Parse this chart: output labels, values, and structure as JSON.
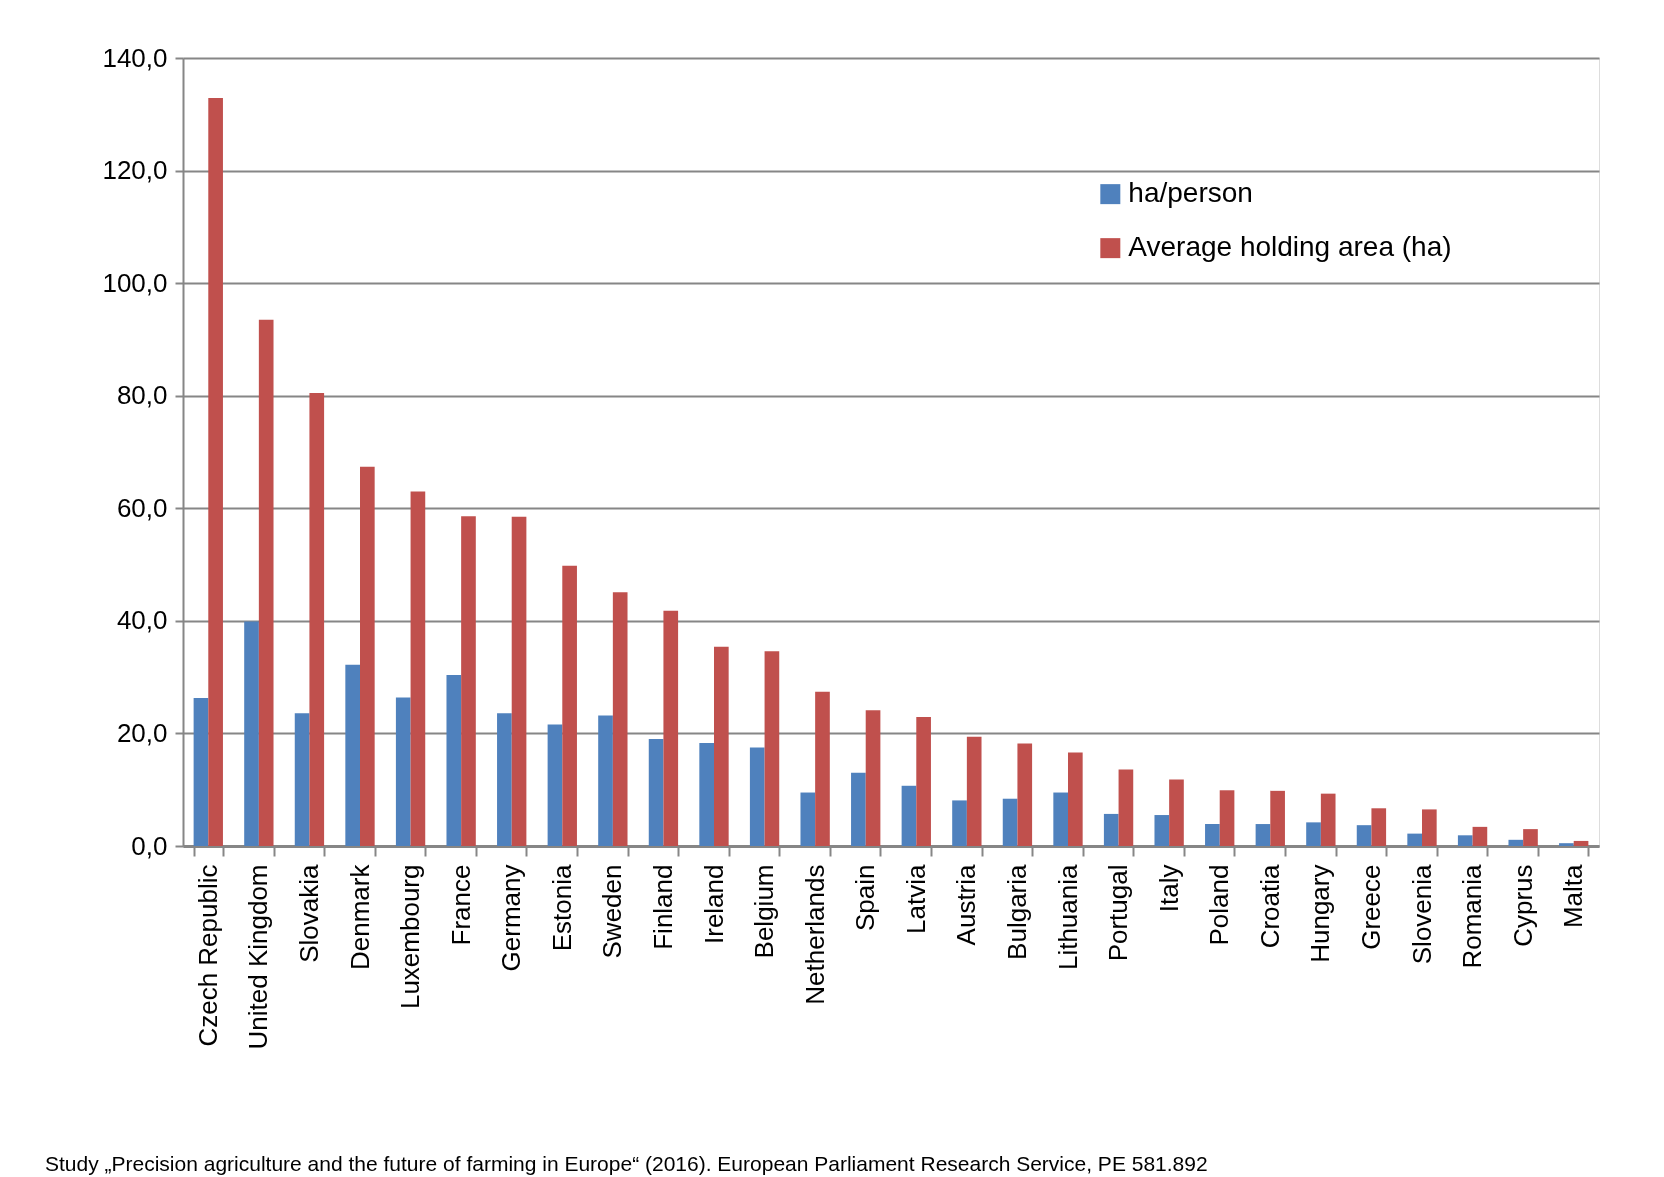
{
  "chart_data": {
    "type": "bar",
    "categories": [
      "Czech Republic",
      "United Kingdom",
      "Slovakia",
      "Denmark",
      "Luxembourg",
      "France",
      "Germany",
      "Estonia",
      "Sweden",
      "Finland",
      "Ireland",
      "Belgium",
      "Netherlands",
      "Spain",
      "Latvia",
      "Austria",
      "Bulgaria",
      "Lithuania",
      "Portugal",
      "Italy",
      "Poland",
      "Croatia",
      "Hungary",
      "Greece",
      "Slovenia",
      "Romania",
      "Cyprus",
      "Malta"
    ],
    "series": [
      {
        "name": "ha/person",
        "color": "#4f81bd",
        "values": [
          26.3,
          39.9,
          23.6,
          32.2,
          26.4,
          30.4,
          23.6,
          21.6,
          23.2,
          19.0,
          18.3,
          17.5,
          9.5,
          13.0,
          10.7,
          8.1,
          8.4,
          9.5,
          5.7,
          5.5,
          3.9,
          3.9,
          4.2,
          3.7,
          2.2,
          1.9,
          1.1,
          0.5
        ]
      },
      {
        "name": "Average holding area (ha)",
        "color": "#c0504d",
        "values": [
          132.9,
          93.5,
          80.5,
          67.4,
          63.0,
          58.6,
          58.5,
          49.8,
          45.1,
          41.8,
          35.4,
          34.6,
          27.4,
          24.1,
          22.9,
          19.4,
          18.2,
          16.6,
          13.6,
          11.8,
          9.9,
          9.8,
          9.3,
          6.7,
          6.5,
          3.4,
          3.0,
          0.9
        ]
      }
    ],
    "ylim": [
      0,
      140
    ],
    "yticks": [
      {
        "value": 0,
        "label": "0,0"
      },
      {
        "value": 20,
        "label": "20,0"
      },
      {
        "value": 40,
        "label": "40,0"
      },
      {
        "value": 60,
        "label": "60,0"
      },
      {
        "value": 80,
        "label": "80,0"
      },
      {
        "value": 100,
        "label": "100,0"
      },
      {
        "value": 120,
        "label": "120,0"
      },
      {
        "value": 140,
        "label": "140,0"
      }
    ],
    "grid": "y",
    "legend": "top right",
    "annotations": [
      "Study „Precision agriculture and the future of farming in Europe“ (2016). European Parliament Research Service, PE 581.892"
    ]
  }
}
